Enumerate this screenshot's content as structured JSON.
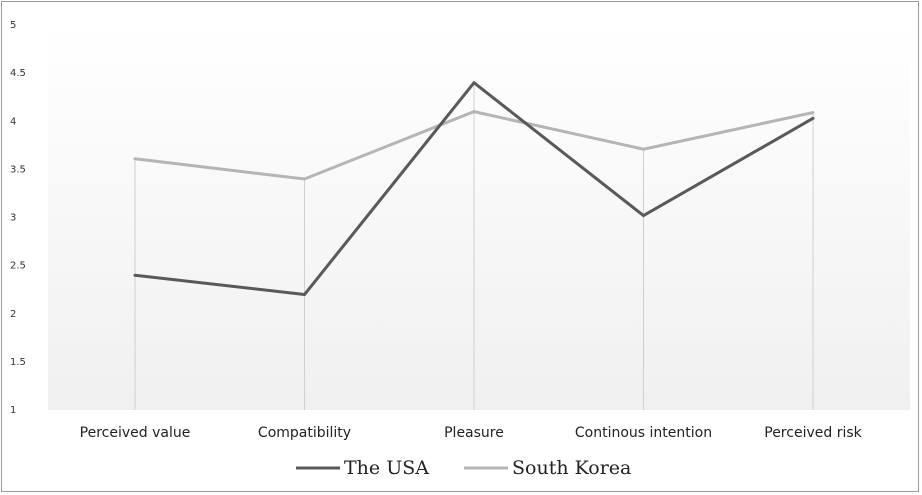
{
  "chart_data": {
    "type": "line",
    "categories": [
      "Perceived value",
      "Compatibility",
      "Pleasure",
      "Continous intention",
      "Perceived risk"
    ],
    "series": [
      {
        "name": "The USA",
        "values": [
          2.4,
          2.2,
          4.4,
          3.02,
          4.03
        ],
        "color": "#595959"
      },
      {
        "name": "South Korea",
        "values": [
          3.61,
          3.4,
          4.1,
          3.71,
          4.09
        ],
        "color": "#b5b5b5"
      }
    ],
    "ylim": [
      1,
      5
    ],
    "yticks": [
      "1",
      "1.5",
      "2",
      "2.5",
      "3",
      "3.5",
      "4",
      "4.5",
      "5"
    ],
    "grid": "vertical drop lines",
    "legend": "bottom-center"
  }
}
